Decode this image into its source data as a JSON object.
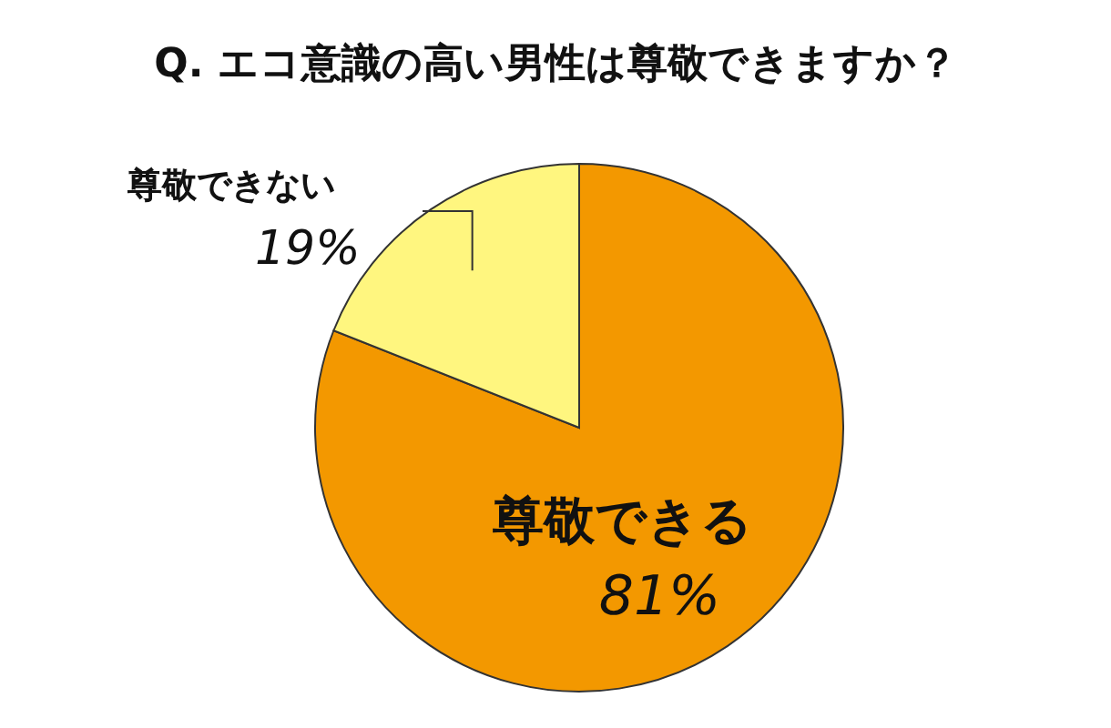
{
  "chart_data": {
    "type": "pie",
    "title": "Q. エコ意識の高い男性は尊敬できますか？",
    "categories": [
      "尊敬できる",
      "尊敬できない"
    ],
    "values": [
      81,
      19
    ],
    "colors": [
      "#f39800",
      "#fff67f"
    ],
    "value_labels": [
      "81%",
      "19%"
    ]
  }
}
